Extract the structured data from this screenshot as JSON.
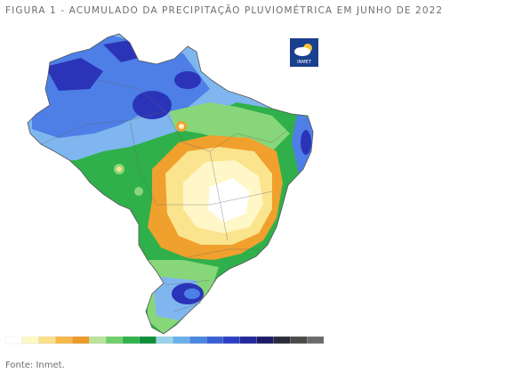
{
  "figure": {
    "title": "FIGURA 1 - ACUMULADO DA PRECIPITAÇÃO PLUVIOMÉTRICA EM JUNHO DE 2022",
    "source": "Fonte: Inmet."
  },
  "logo": {
    "label": "INMET",
    "icon": "weather-cloud-sun-icon"
  },
  "legend": {
    "colors": [
      "#ffffff",
      "#fff9c8",
      "#fbe08a",
      "#f6b84a",
      "#ee9a2a",
      "#b9e39a",
      "#6fcf6a",
      "#2fb34a",
      "#0f8f3a",
      "#9ad3e8",
      "#6ab0ea",
      "#4a86e0",
      "#3b5fd6",
      "#2a3fc4",
      "#23289a",
      "#1b1b6a",
      "#2a2a3a",
      "#4a4a4a",
      "#6b6b6b"
    ]
  },
  "colors": {
    "dark_blue": "#2b34b8",
    "blue": "#4d7fe6",
    "light_blue": "#7fb6ef",
    "green": "#2fb04a",
    "light_green": "#88d67a",
    "orange": "#f0a02c",
    "yellow": "#fbe48e",
    "pale_yellow": "#fff7c8",
    "white": "#ffffff"
  }
}
